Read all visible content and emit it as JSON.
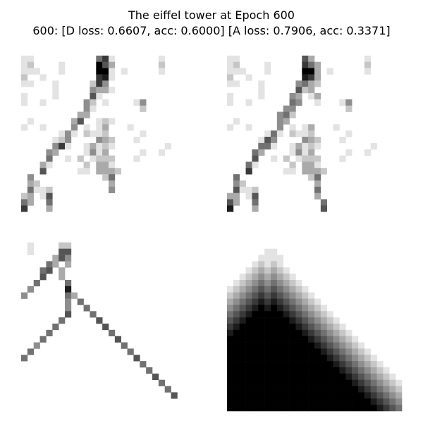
{
  "figure": {
    "title_line1": "The eiffel tower at Epoch 600",
    "title_line2": "600: [D loss: 0.6607, acc: 0.6000]  [A loss: 0.7906, acc: 0.3371]"
  },
  "panels": [
    {
      "id": "sample-1",
      "grid": [
        "0000000000000000000000000000",
        "1100000000005710000000100000",
        "1200001000009630000000200000",
        "1110001000009910100000100000",
        "2001000000007810000000000000",
        "1100010000027400000000000000",
        "0000010000043310000000000000",
        "1000010000061000000000000000",
        "1001000000420100001400000000",
        "0000000000410000000200000000",
        "0000000003300000000000000000",
        "0100000036001210000000000000",
        "1001000040101300010000000000",
        "0000001410211200000100000000",
        "0000012400004320001000000000",
        "0000047100131210000000010000",
        "0000430000141300000100100000",
        "0000500102012220001000000000",
        "0003100000203310000000000000",
        "0006000001103332000000000000",
        "0400000000000250000000000000",
        "0320000000000030000000000000",
        "0511200000000040000000000000",
        "2301600000000000000000000000",
        "5300500000000000000000000000",
        "7000300000000000000000000000",
        "0000000000000000000000000000",
        "0000000000000000000000000000"
      ]
    },
    {
      "id": "sample-2",
      "grid": [
        "0000000000000000000000000000",
        "1100000000006300000000100000",
        "1200001000007530000000200000",
        "1110001000009930100000100000",
        "2001000000008730000000000000",
        "1100010000045320000000000000",
        "0000010000062300000000000000",
        "1000010000430130000000000000",
        "1001000000540010001400000000",
        "0000000004400000000200000000",
        "0000000045200000000000000000",
        "0100000043000000000000000000",
        "1001000040101300010000000000",
        "0000001510211200000100000000",
        "0000016400004320001000000000",
        "0000055100131210000000010000",
        "0000530000141300000100100000",
        "0000600102012220001000000000",
        "0005100000203310000000000000",
        "0007000001103332000000000000",
        "0500000000000250000000000000",
        "0420000000000030000000000000",
        "0611200000000050000000000000",
        "3301600000000030000000000000",
        "6300500000000005000000000000",
        "8000300000000006000000000000",
        "0000000000000000000000000000",
        "0000000000000000000000000000"
      ]
    },
    {
      "id": "sample-3",
      "grid": [
        "0000000000000000000000000000",
        "0100002200000000000000000000",
        "0100006600000000000000000000",
        "0000036400000000000000000000",
        "0000530300000000000000000000",
        "0005603000000000000000000000",
        "0006003000000000000000000000",
        "0050000500000000000000000000",
        "0400000800000000000000000000",
        "4000000530000000000000000000",
        "0000000405000000000000000000",
        "0000000400500000000000000000",
        "0000000600050000000000000000",
        "0000005000006000000000000000",
        "0000050000000600000000000000",
        "0000500000000050000000000000",
        "0005000000000006000000000000",
        "0040000000000000500000000000",
        "0500000000000000050000000000",
        "5000000000000000006000000000",
        "0000000000000000000500000000",
        "0000000000000000000050000000",
        "0000000000000000000006000000",
        "0000000000000000000000500000",
        "0000000000000000000000050000",
        "0000000000000000000000006000",
        "0000000000000000000000000000",
        "0000000000000000000000000000"
      ]
    },
    {
      "id": "sample-4",
      "grid": [
        "0000000000000000000000000000",
        "0000000000000000000000000000",
        "0000001100000000000000000000",
        "0000011110000000000000000000",
        "0000121210000000000000000000",
        "0001232321000000000000000000",
        "0012343432100000000000000000",
        "0123454543210000000000000000",
        "1234565654321000000000000000",
        "2345676765432100000000000000",
        "3456787876543210000000000000",
        "4567898987654321000000000000",
        "5678999998765432100000000000",
        "6789999999876543210000000000",
        "7899999999987654321000000000",
        "8999999999998765432100000000",
        "9999999999999876543210000000",
        "9999999999999987654321000000",
        "9999999999999998765432100000",
        "9999999999999999876543210000",
        "9999999999999999987654321000",
        "9999999999999999998765432100",
        "9999999999999999999876543210",
        "9999999999999999999987654321",
        "9999999999999999999998765432",
        "9999999999999999999999876543",
        "9999999999999999999999987654",
        "9999999999999999999999998765"
      ]
    }
  ]
}
